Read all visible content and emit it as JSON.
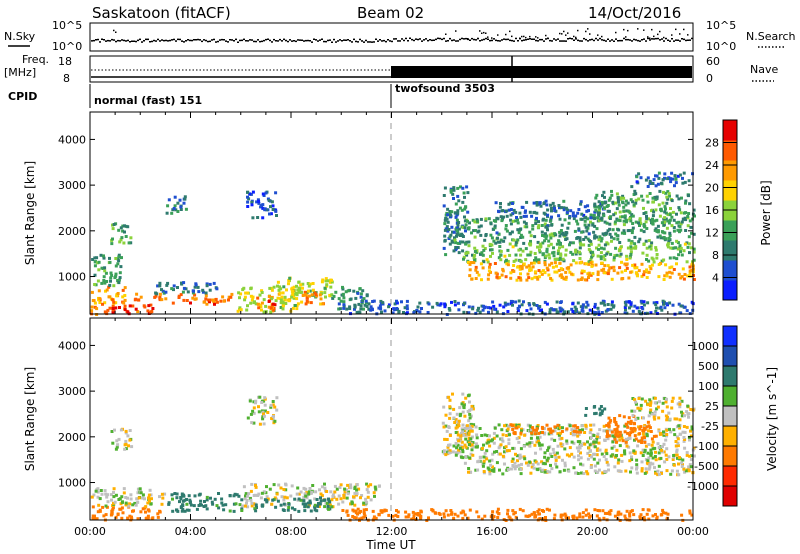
{
  "header": {
    "radar": "Saskatoon (fitACF)",
    "beam": "Beam 02",
    "date": "14/Oct/2016"
  },
  "top_panels": {
    "nsky_label": "N.Sky",
    "nsearch_label": "N.Search",
    "freq_label_line1": "Freq.",
    "freq_label_line2": "[MHz]",
    "nave_label": "Nave",
    "cpid_label": "CPID",
    "noise_ticks_left": [
      "10^5",
      "10^0"
    ],
    "noise_ticks_right": [
      "10^5",
      "10^0"
    ],
    "freq_ticks": [
      "18",
      "8"
    ],
    "nave_ticks": [
      "60",
      "0"
    ],
    "cpid_segments": [
      {
        "start_hour": 0,
        "end_hour": 12,
        "label": "normal (fast) 151"
      },
      {
        "start_hour": 12,
        "end_hour": 24,
        "label": "twofsound 3503"
      }
    ]
  },
  "chart_data": [
    {
      "type": "heatmap",
      "title": "",
      "xlabel": "Time UT",
      "ylabel": "Slant Range [km]",
      "xlim": [
        0,
        24
      ],
      "ylim": [
        180,
        4600
      ],
      "x_ticks": [
        "00:00",
        "04:00",
        "08:00",
        "12:00",
        "16:00",
        "20:00",
        "00:00"
      ],
      "y_ticks": [
        "1000",
        "2000",
        "3000",
        "4000"
      ],
      "y_tick_values": [
        1000,
        2000,
        3000,
        4000
      ],
      "colorbar": {
        "label": "Power [dB]",
        "range": [
          0,
          32
        ],
        "ticks": [
          "4",
          "8",
          "12",
          "16",
          "20",
          "24",
          "28"
        ],
        "tick_values": [
          4,
          8,
          12,
          16,
          20,
          24,
          28
        ],
        "colors": [
          "#0a1eff",
          "#1f4fd0",
          "#2e7a6e",
          "#3aa058",
          "#8bd23a",
          "#ffd200",
          "#ff9a00",
          "#ff5a00",
          "#e60000"
        ]
      },
      "regions": [
        {
          "t0": 0.0,
          "t1": 2.6,
          "r0": 200,
          "r1": 420,
          "power": 27
        },
        {
          "t0": 0.0,
          "t1": 1.4,
          "r0": 420,
          "r1": 800,
          "power": 22
        },
        {
          "t0": 0.0,
          "t1": 1.2,
          "r0": 800,
          "r1": 1500,
          "power": 12
        },
        {
          "t0": 0.8,
          "t1": 1.6,
          "r0": 1750,
          "r1": 2200,
          "power": 14
        },
        {
          "t0": 1.5,
          "t1": 3.0,
          "r0": 500,
          "r1": 650,
          "power": 24
        },
        {
          "t0": 3.2,
          "t1": 5.6,
          "r0": 420,
          "r1": 650,
          "power": 26
        },
        {
          "t0": 2.5,
          "t1": 5.0,
          "r0": 650,
          "r1": 900,
          "power": 8
        },
        {
          "t0": 3.0,
          "t1": 3.8,
          "r0": 2400,
          "r1": 2800,
          "power": 8
        },
        {
          "t0": 6.2,
          "t1": 7.4,
          "r0": 2300,
          "r1": 2900,
          "power": 6
        },
        {
          "t0": 5.8,
          "t1": 8.4,
          "r0": 250,
          "r1": 800,
          "power": 18
        },
        {
          "t0": 6.6,
          "t1": 7.4,
          "r0": 300,
          "r1": 600,
          "power": 26
        },
        {
          "t0": 7.4,
          "t1": 9.6,
          "r0": 550,
          "r1": 1000,
          "power": 17
        },
        {
          "t0": 8.4,
          "t1": 9.3,
          "r0": 350,
          "r1": 700,
          "power": 25
        },
        {
          "t0": 9.6,
          "t1": 11.0,
          "r0": 300,
          "r1": 800,
          "power": 10
        },
        {
          "t0": 10.0,
          "t1": 24.0,
          "r0": 200,
          "r1": 500,
          "power": 6
        },
        {
          "t0": 14.0,
          "t1": 15.0,
          "r0": 1500,
          "r1": 3000,
          "power": 9
        },
        {
          "t0": 14.3,
          "t1": 24.0,
          "r0": 1750,
          "r1": 2300,
          "power": 11
        },
        {
          "t0": 14.8,
          "t1": 24.0,
          "r0": 1350,
          "r1": 1750,
          "power": 14
        },
        {
          "t0": 15.0,
          "t1": 24.0,
          "r0": 950,
          "r1": 1350,
          "power": 22
        },
        {
          "t0": 16.0,
          "t1": 20.5,
          "r0": 2300,
          "r1": 2700,
          "power": 7
        },
        {
          "t0": 20.0,
          "t1": 24.0,
          "r0": 2200,
          "r1": 2900,
          "power": 12
        },
        {
          "t0": 21.5,
          "t1": 24.0,
          "r0": 3000,
          "r1": 3300,
          "power": 7
        }
      ]
    },
    {
      "type": "heatmap",
      "title": "",
      "xlabel": "Time UT",
      "ylabel": "Slant Range [km]",
      "xlim": [
        0,
        24
      ],
      "ylim": [
        180,
        4600
      ],
      "x_ticks": [
        "00:00",
        "04:00",
        "08:00",
        "12:00",
        "16:00",
        "20:00",
        "00:00"
      ],
      "y_ticks": [
        "1000",
        "2000",
        "3000",
        "4000"
      ],
      "y_tick_values": [
        1000,
        2000,
        3000,
        4000
      ],
      "colorbar": {
        "label": "Velocity [m s^-1]",
        "ticks": [
          "1000",
          "500",
          "100",
          "25",
          "-25",
          "-100",
          "-500",
          "-1000"
        ],
        "tick_values": [
          1000,
          500,
          100,
          25,
          -25,
          -100,
          -500,
          -1000
        ],
        "colors": [
          "#1030ff",
          "#1f4fb0",
          "#2e7a6e",
          "#4fb030",
          "#c0c0c0",
          "#ffb000",
          "#ff7a00",
          "#ff2a00",
          "#e00000"
        ]
      },
      "regions": [
        {
          "t0": 0.0,
          "t1": 2.8,
          "r0": 200,
          "r1": 500,
          "velocity": -300
        },
        {
          "t0": 0.0,
          "t1": 3.0,
          "r0": 500,
          "r1": 900,
          "velocity": 0
        },
        {
          "t0": 0.8,
          "t1": 1.6,
          "r0": 1750,
          "r1": 2200,
          "velocity": 0
        },
        {
          "t0": 3.0,
          "t1": 6.0,
          "r0": 400,
          "r1": 800,
          "velocity": 150
        },
        {
          "t0": 6.0,
          "t1": 11.5,
          "r0": 500,
          "r1": 1000,
          "velocity": 0
        },
        {
          "t0": 6.5,
          "t1": 9.5,
          "r0": 400,
          "r1": 700,
          "velocity": 150
        },
        {
          "t0": 6.2,
          "t1": 7.4,
          "r0": 2300,
          "r1": 2900,
          "velocity": 0
        },
        {
          "t0": 10.0,
          "t1": 24.0,
          "r0": 200,
          "r1": 450,
          "velocity": -250
        },
        {
          "t0": 14.0,
          "t1": 15.2,
          "r0": 1600,
          "r1": 3000,
          "velocity": 0
        },
        {
          "t0": 14.5,
          "t1": 24.0,
          "r0": 1200,
          "r1": 2300,
          "velocity": 0
        },
        {
          "t0": 16.5,
          "t1": 19.5,
          "r0": 2100,
          "r1": 2300,
          "velocity": -300
        },
        {
          "t0": 20.5,
          "t1": 22.5,
          "r0": 1900,
          "r1": 2500,
          "velocity": -400
        },
        {
          "t0": 21.5,
          "t1": 24.0,
          "r0": 2400,
          "r1": 2900,
          "velocity": 0
        },
        {
          "t0": 19.5,
          "t1": 20.5,
          "r0": 2500,
          "r1": 2700,
          "velocity": 200
        }
      ]
    }
  ]
}
